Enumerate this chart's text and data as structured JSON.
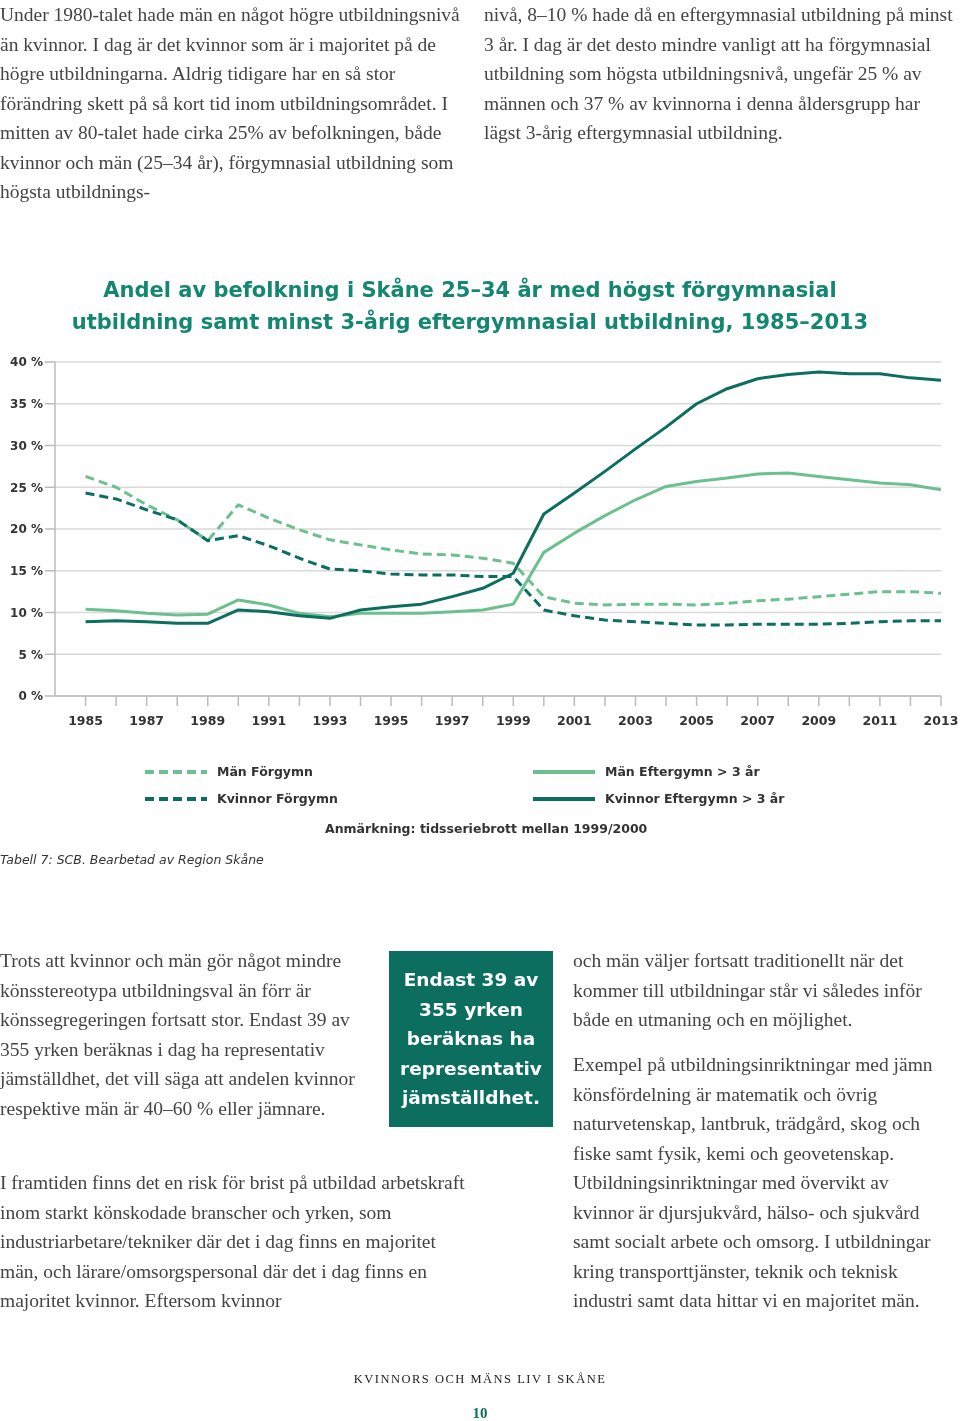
{
  "chart_data": {
    "type": "line",
    "title": "Andel av befolkning i Skåne 25–34 år med högst förgymnasial utbildning samt minst 3-årig eftergymnasial utbildning, 1985–2013",
    "x": [
      1985,
      1986,
      1987,
      1988,
      1989,
      1990,
      1991,
      1992,
      1993,
      1994,
      1995,
      1996,
      1997,
      1998,
      1999,
      2000,
      2001,
      2002,
      2003,
      2004,
      2005,
      2006,
      2007,
      2008,
      2009,
      2010,
      2011,
      2012,
      2013
    ],
    "series": [
      {
        "name": "Män Förgymn",
        "color": "#6cc090",
        "line_style": "dashed",
        "values": [
          26.3,
          25.0,
          22.9,
          21.1,
          18.6,
          22.9,
          21.3,
          19.9,
          18.7,
          18.1,
          17.5,
          17.0,
          16.9,
          16.5,
          15.9,
          11.9,
          11.1,
          10.9,
          11.0,
          11.0,
          10.9,
          11.1,
          11.4,
          11.6,
          11.9,
          12.2,
          12.5,
          12.5,
          12.3
        ]
      },
      {
        "name": "Kvinnor Förgymn",
        "color": "#0b6e5f",
        "line_style": "dashed",
        "values": [
          24.3,
          23.6,
          22.3,
          21.1,
          18.6,
          19.2,
          18.0,
          16.5,
          15.2,
          15.0,
          14.6,
          14.5,
          14.5,
          14.3,
          14.3,
          10.3,
          9.6,
          9.1,
          8.9,
          8.7,
          8.5,
          8.5,
          8.6,
          8.6,
          8.6,
          8.7,
          8.9,
          9.0,
          9.0
        ]
      },
      {
        "name": "Män Eftergymn > 3 år",
        "color": "#6cc090",
        "line_style": "solid",
        "values": [
          10.4,
          10.2,
          9.9,
          9.7,
          9.8,
          11.5,
          10.9,
          9.9,
          9.5,
          9.9,
          9.9,
          9.9,
          10.1,
          10.3,
          11.0,
          17.2,
          19.5,
          21.6,
          23.5,
          25.1,
          25.7,
          26.1,
          26.6,
          26.7,
          26.3,
          25.9,
          25.5,
          25.3,
          24.7
        ]
      },
      {
        "name": "Kvinnor Eftergymn > 3 år",
        "color": "#0b6e5f",
        "line_style": "solid",
        "values": [
          8.9,
          9.0,
          8.9,
          8.7,
          8.7,
          10.3,
          10.1,
          9.6,
          9.3,
          10.3,
          10.7,
          11.0,
          11.9,
          12.9,
          14.7,
          21.8,
          24.3,
          26.9,
          29.6,
          32.2,
          35.0,
          36.8,
          38.0,
          38.5,
          38.8,
          38.6,
          38.6,
          38.1,
          37.8
        ]
      }
    ],
    "xlim": [
      1984,
      2013
    ],
    "xticks": [
      1985,
      {
        "value": 1986,
        "label": null
      },
      1987,
      {
        "value": 1988,
        "label": null
      },
      1989,
      {
        "value": 1990,
        "label": null
      },
      1991,
      {
        "value": 1992,
        "label": null
      },
      1993,
      {
        "value": 1994,
        "label": null
      },
      1995,
      {
        "value": 1996,
        "label": null
      },
      1997,
      {
        "value": 1998,
        "label": null
      },
      1999,
      {
        "value": 2000,
        "label": null
      },
      2001,
      {
        "value": 2002,
        "label": null
      },
      2003,
      {
        "value": 2004,
        "label": null
      },
      2005,
      {
        "value": 2006,
        "label": null
      },
      2007,
      {
        "value": 2008,
        "label": null
      },
      2009,
      {
        "value": 2010,
        "label": null
      },
      2011,
      {
        "value": 2012,
        "label": null
      },
      2013
    ],
    "ylim": [
      0,
      40
    ],
    "yticks": [
      {
        "value": 0,
        "label": "0 %"
      },
      {
        "value": 5,
        "label": "5 %"
      },
      {
        "value": 10,
        "label": "10 %"
      },
      {
        "value": 15,
        "label": "15 %"
      },
      {
        "value": 20,
        "label": "20 %"
      },
      {
        "value": 25,
        "label": "25 %"
      },
      {
        "value": 30,
        "label": "30 %"
      },
      {
        "value": 35,
        "label": "35 %"
      },
      {
        "value": 40,
        "label": "40 %"
      }
    ],
    "grid": "y",
    "legend": "bottom",
    "marker": "none",
    "annotations": [
      "Under 1980-talet hade män en något högre utbildningsnivå än kvinnor. I dag är det kvinnor som är i majoritet på de högre utbildningarna. Aldrig tidigare har en så stor förändring skett på så kort tid inom utbildningsområdet. I mitten av 80-talet hade cirka 25% av befolkningen, både kvinnor och män (25–34 år), förgymnasial utbildning som högsta utbildnings-",
      "nivå, 8–10 % hade då en eftergymnasial utbildning på minst 3 år. I dag är det desto mindre vanligt att ha förgymnasial utbildning som högsta utbildningsnivå, ungefär 25 % av männen och 37 % av kvinnorna i denna åldersgrupp har lägst 3-årig eftergymnasial utbildning.",
      "Anmärkning: tidsseriebrott mellan 1999/2000",
      "Tabell 7: SCB. Bearbetad av Region Skåne",
      "Trots att kvinnor och män gör något mindre könsstereotypa utbildningsval än förr är könssegregeringen fortsatt stor. Endast 39 av 355 yrken beräknas i dag ha representativ jämställdhet, det vill säga att andelen kvinnor respektive män är 40–60 % eller jämnare.",
      "Endast 39 av 355 yrken beräknas ha representativ jämställdhet.",
      "I framtiden finns det en risk för brist på utbildad arbetskraft inom starkt könskodade branscher och yrken, som industriarbetare/tekniker där det i dag finns en majoritet män, och lärare/omsorgspersonal där det i dag finns en majoritet kvinnor. Eftersom kvinnor",
      "och män väljer fortsatt traditionellt när det kommer till utbildningar står vi således inför både en utmaning och en möjlighet.",
      "Exempel på utbildningsinriktningar med jämn könsfördelning är matematik och övrig naturvetenskap, lantbruk, trädgård, skog och fiske samt fysik, kemi och geovetenskap. Utbildningsinriktningar med övervikt av kvinnor är djursjukvård, hälso- och sjukvård samt socialt arbete och omsorg. I utbildningar kring transporttjänster, teknik och teknisk industri samt data hittar vi en majoritet män.",
      "KVINNORS OCH MÄNS LIV I SKÅNE",
      "10"
    ]
  }
}
